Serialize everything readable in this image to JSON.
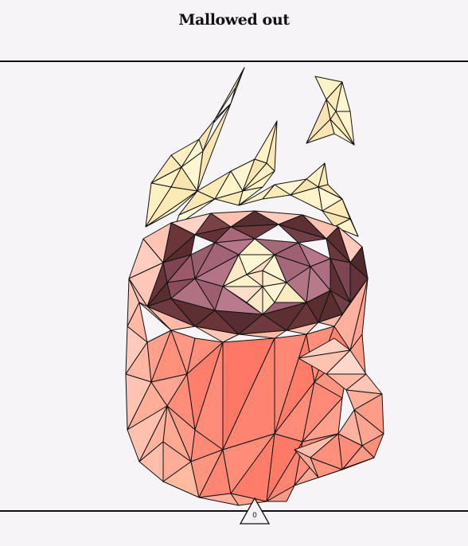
{
  "header": {
    "title": "Mallowed out"
  },
  "scene": {
    "subject": "low-poly-mug-icon",
    "colors": {
      "background": "#f6f4f6",
      "mug_body": "#f58a78",
      "mug_highlight": "#ffc9bb",
      "cocoa_dark": "#5e2f31",
      "cocoa_mid": "#a9687a",
      "marshmallow": "#fff3c9",
      "steam": "#fff0c2",
      "outline": "#111111"
    }
  },
  "footer": {
    "counter_value": "0",
    "counter_icon": "triangle-icon"
  }
}
